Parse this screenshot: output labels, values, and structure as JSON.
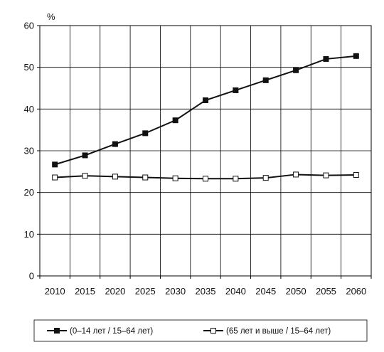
{
  "chart_data": {
    "type": "line",
    "title": "",
    "xlabel": "",
    "ylabel": "%",
    "x": [
      2010,
      2015,
      2020,
      2025,
      2030,
      2035,
      2040,
      2045,
      2050,
      2055,
      2060
    ],
    "ylim": [
      0,
      60
    ],
    "yticks": [
      0,
      10,
      20,
      30,
      40,
      50,
      60
    ],
    "grid": true,
    "legend_position": "bottom",
    "series": [
      {
        "name": "(0–14 лет / 15–64 лет)",
        "marker": "filled-square",
        "color": "#111111",
        "values": [
          26.7,
          28.9,
          31.6,
          34.2,
          37.3,
          42.1,
          44.5,
          46.9,
          49.3,
          52.0,
          52.7
        ]
      },
      {
        "name": "(65 лет и выше / 15–64 лет)",
        "marker": "open-square",
        "color": "#111111",
        "values": [
          23.6,
          24.0,
          23.8,
          23.6,
          23.4,
          23.3,
          23.3,
          23.5,
          24.3,
          24.1,
          24.2
        ]
      }
    ]
  }
}
